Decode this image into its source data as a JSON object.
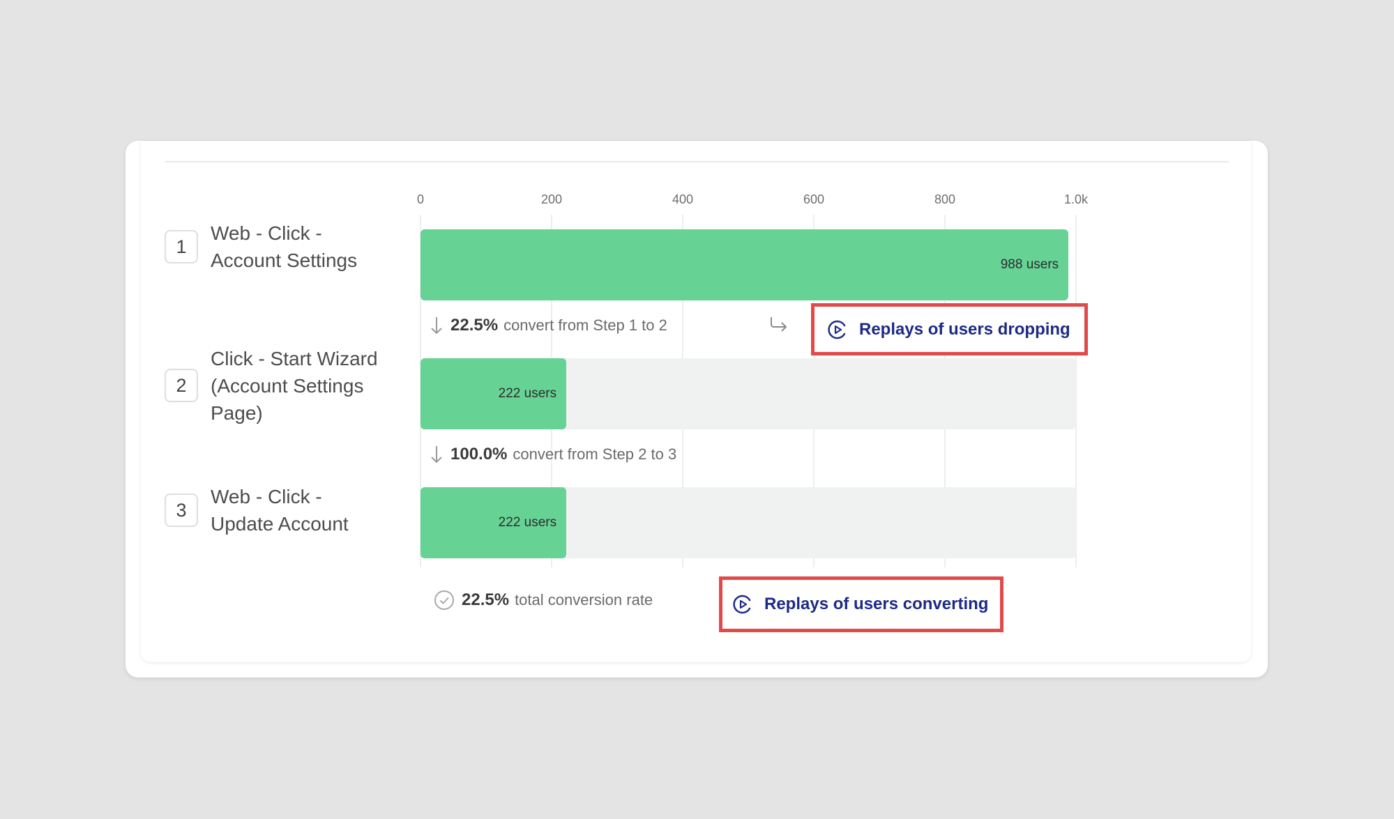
{
  "steps": [
    {
      "number": "1",
      "label": "Web - Click - Account Settings",
      "users": 988,
      "users_label": "988 users"
    },
    {
      "number": "2",
      "label": "Click - Start Wizard (Account Settings Page)",
      "users": 222,
      "users_label": "222 users"
    },
    {
      "number": "3",
      "label": "Web - Click - Update Account",
      "users": 222,
      "users_label": "222 users"
    }
  ],
  "conversions": [
    {
      "pct": "22.5%",
      "text": "convert from Step 1 to 2"
    },
    {
      "pct": "100.0%",
      "text": "convert from Step 2 to 3"
    }
  ],
  "total": {
    "pct": "22.5%",
    "text": "total conversion rate"
  },
  "buttons": {
    "dropping": "Replays of users dropping",
    "converting": "Replays of users converting"
  },
  "colors": {
    "bar": "#66d395",
    "track": "#f0f1f1",
    "highlight_border": "#e24a4a",
    "link_text": "#1d2a86"
  },
  "icons": {
    "down_arrow": "arrow-down-icon",
    "return_arrow": "return-arrow-icon",
    "replay": "replay-play-icon",
    "check": "check-circle-icon"
  },
  "chart_data": {
    "type": "bar",
    "orientation": "horizontal",
    "categories": [
      "Web - Click - Account Settings",
      "Click - Start Wizard (Account Settings Page)",
      "Web - Click - Update Account"
    ],
    "values": [
      988,
      222,
      222
    ],
    "xlim": [
      0,
      1000
    ],
    "x_ticks": [
      0,
      200,
      400,
      600,
      800,
      1000
    ],
    "x_tick_labels": [
      "0",
      "200",
      "400",
      "600",
      "800",
      "1.0k"
    ],
    "grid": true
  }
}
